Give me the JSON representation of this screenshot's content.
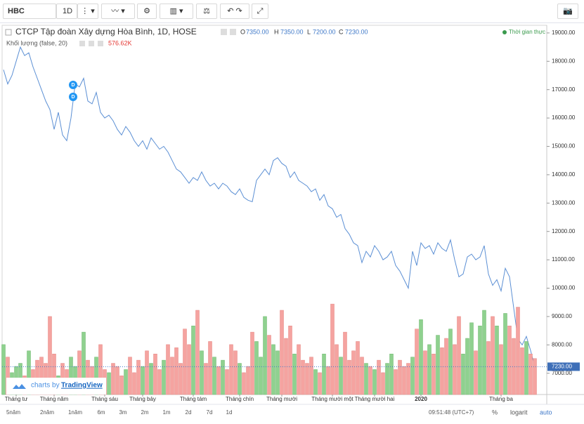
{
  "toolbar": {
    "symbol": "HBC",
    "interval": "1D"
  },
  "status": "Thời gian thực",
  "legend": {
    "o_label": "O",
    "o": "7350.00",
    "h_label": "H",
    "h": "7350.00",
    "l_label": "L",
    "l": "7200.00",
    "c_label": "C",
    "c": "7230.00",
    "volume_value": "576.62K"
  },
  "watermark": {
    "prefix": "charts by",
    "brand": "TradingView"
  },
  "range_buttons": [
    "5năm",
    "2năm",
    "1năm",
    "6m",
    "3m",
    "2m",
    "1m",
    "2d",
    "7d",
    "1d"
  ],
  "footer": {
    "time": "09:51:48 (UTC+7)",
    "percent": "%",
    "log": "logarit",
    "auto": "auto"
  },
  "chart_data": {
    "type": "line",
    "title": "CTCP Tập đoàn Xây dựng Hòa Bình, 1D, HOSE",
    "xlim": [
      0,
      126
    ],
    "xticks": [
      {
        "value": 3,
        "label": "Tháng tư"
      },
      {
        "value": 12,
        "label": "Tháng năm"
      },
      {
        "value": 24,
        "label": "Tháng sáu"
      },
      {
        "value": 33,
        "label": "Tháng bảy"
      },
      {
        "value": 45,
        "label": "Tháng tám"
      },
      {
        "value": 56,
        "label": "Tháng chín"
      },
      {
        "value": 66,
        "label": "Tháng mười"
      },
      {
        "value": 78,
        "label": "Tháng mười một"
      },
      {
        "value": 88,
        "label": "Tháng mười hai"
      },
      {
        "value": 99,
        "label": "2020"
      },
      {
        "value": 118,
        "label": "Tháng ba"
      }
    ],
    "ylim": [
      6250,
      19270
    ],
    "yticks": [
      {
        "value": 7000,
        "label": "7000.00"
      },
      {
        "value": 8000,
        "label": "8000.00"
      },
      {
        "value": 9000,
        "label": "9000.00"
      },
      {
        "value": 10000,
        "label": "10000.00"
      },
      {
        "value": 11000,
        "label": "11000.00"
      },
      {
        "value": 12000,
        "label": "12000.00"
      },
      {
        "value": 13000,
        "label": "13000.00"
      },
      {
        "value": 14000,
        "label": "14000.00"
      },
      {
        "value": 15000,
        "label": "15000.00"
      },
      {
        "value": 16000,
        "label": "16000.00"
      },
      {
        "value": 17000,
        "label": "17000.00"
      },
      {
        "value": 18000,
        "label": "18000.00"
      },
      {
        "value": 19000,
        "label": "19000.00"
      }
    ],
    "y2lim": [
      0,
      1800000
    ],
    "last_price": {
      "value": 7230,
      "label": "7230.00"
    },
    "events": [
      {
        "label": "D",
        "x": 16.5
      },
      {
        "label": "D",
        "x": 16.5
      }
    ],
    "series": [
      {
        "color": "#5b8fd4",
        "values": [
          17700,
          17200,
          17500,
          18000,
          18500,
          18200,
          18300,
          17800,
          17400,
          17000,
          16600,
          16300,
          15600,
          16200,
          15400,
          15200,
          16000,
          17200,
          17100,
          17400,
          16600,
          16500,
          16900,
          16200,
          16000,
          16100,
          15900,
          15600,
          15400,
          15700,
          15500,
          15200,
          15000,
          15200,
          14900,
          15300,
          15100,
          14900,
          15000,
          14800,
          14500,
          14200,
          14100,
          13900,
          13700,
          13900,
          13800,
          14100,
          13800,
          13600,
          13700,
          13500,
          13700,
          13600,
          13400,
          13300,
          13500,
          13200,
          13100,
          13050,
          13800,
          14000,
          14200,
          14000,
          14500,
          14600,
          14400,
          14300,
          13900,
          14100,
          13800,
          13700,
          13600,
          13400,
          13500,
          13100,
          13300,
          12900,
          12800,
          12500,
          12600,
          12100,
          11900,
          11600,
          11500,
          10900,
          11300,
          11100,
          11500,
          11300,
          11000,
          11100,
          11300,
          10800,
          10600,
          10300,
          10000,
          11300,
          10800,
          11600,
          11400,
          11500,
          11200,
          11600,
          11400,
          11300,
          11700,
          11000,
          10400,
          10500,
          11100,
          11200,
          11000,
          11100,
          11500,
          10500,
          10100,
          10300,
          9900,
          10700,
          10400,
          9300,
          8200,
          8000,
          8300,
          7800,
          7230
        ]
      },
      {
        "name": "Khối lượng (false, 20)",
        "type": "bar",
        "axis": "y2",
        "up_color": "#8fd18f",
        "down_color": "#f5a3a0",
        "values": [
          800000,
          600000,
          350000,
          450000,
          500000,
          300000,
          700000,
          400000,
          550000,
          600000,
          500000,
          1250000,
          650000,
          300000,
          500000,
          400000,
          600000,
          450000,
          700000,
          1000000,
          550000,
          450000,
          600000,
          800000,
          400000,
          350000,
          500000,
          450000,
          300000,
          400000,
          600000,
          350000,
          550000,
          450000,
          700000,
          500000,
          650000,
          400000,
          550000,
          800000,
          600000,
          750000,
          500000,
          1050000,
          800000,
          1100000,
          1350000,
          700000,
          500000,
          850000,
          600000,
          450000,
          550000,
          400000,
          800000,
          700000,
          500000,
          350000,
          450000,
          1000000,
          850000,
          600000,
          1250000,
          950000,
          800000,
          700000,
          1350000,
          900000,
          1100000,
          650000,
          800000,
          550000,
          500000,
          600000,
          400000,
          350000,
          650000,
          450000,
          1450000,
          800000,
          600000,
          1000000,
          550000,
          700000,
          850000,
          600000,
          500000,
          450000,
          400000,
          550000,
          350000,
          500000,
          650000,
          400000,
          550000,
          450000,
          500000,
          600000,
          1050000,
          1200000,
          700000,
          800000,
          650000,
          950000,
          750000,
          900000,
          1050000,
          800000,
          1250000,
          650000,
          900000,
          1150000,
          700000,
          1100000,
          1350000,
          850000,
          1250000,
          1100000,
          800000,
          1300000,
          1100000,
          900000,
          1400000,
          750000,
          850000,
          650000,
          576620
        ]
      }
    ]
  }
}
